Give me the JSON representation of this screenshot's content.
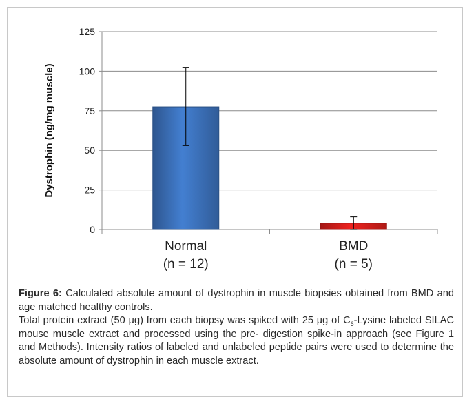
{
  "chart_data": {
    "type": "bar",
    "categories": [
      "Normal",
      "BMD"
    ],
    "category_labels": [
      [
        "Normal",
        "(n = 12)"
      ],
      [
        "BMD",
        "(n = 5)"
      ]
    ],
    "values": [
      77.5,
      4
    ],
    "error_bars": [
      [
        53,
        102.5
      ],
      [
        0,
        8
      ]
    ],
    "bar_colors": [
      "#3d73be",
      "#d9201c"
    ],
    "ylabel": "Dystrophin  (ng/mg muscle)",
    "ylim": [
      0,
      125
    ],
    "yticks": [
      0,
      25,
      50,
      75,
      100,
      125
    ],
    "grid": true
  },
  "caption": {
    "figure_label": "Figure 6:",
    "line1_text": "Calculated absolute amount of dystrophin in muscle biopsies obtained from BMD and age matched healthy controls.",
    "line2_before": "Total protein extract (50 µg) from each biopsy was spiked with 25 µg of C",
    "line2_sub": "6",
    "line2_after": "-Lysine labeled SILAC mouse muscle extract and processed using the pre- digestion spike-in approach (see Figure 1 and Methods). Intensity ratios of labeled and unlabeled peptide pairs were used to determine the absolute amount of dystrophin in each muscle extract."
  }
}
